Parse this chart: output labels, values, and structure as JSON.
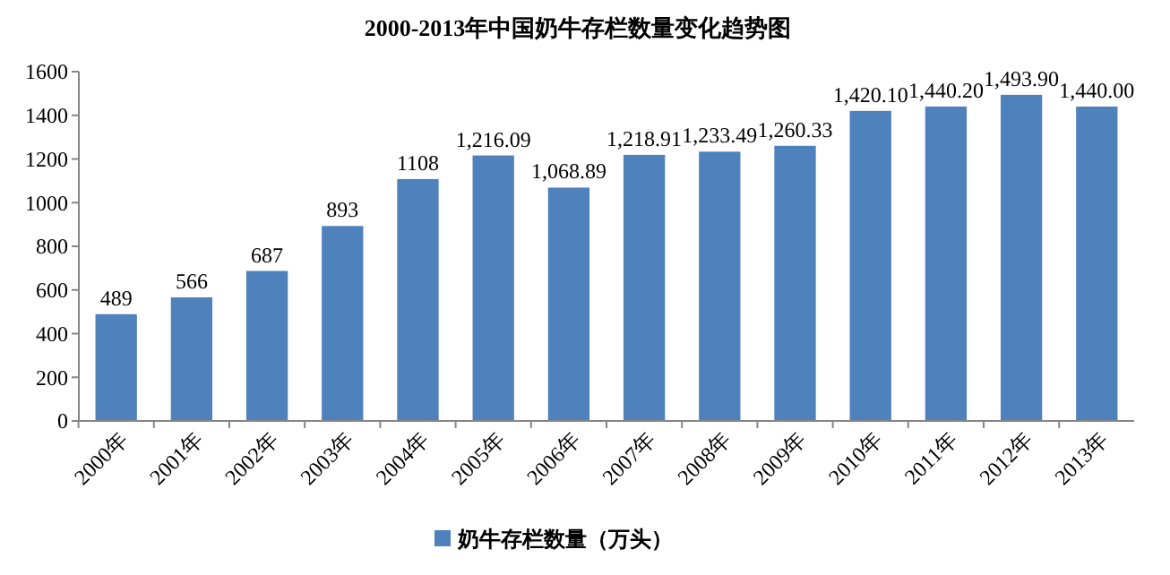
{
  "chart_data": {
    "type": "bar",
    "title": "2000-2013年中国奶牛存栏数量变化趋势图",
    "categories": [
      "2000年",
      "2001年",
      "2002年",
      "2003年",
      "2004年",
      "2005年",
      "2006年",
      "2007年",
      "2008年",
      "2009年",
      "2010年",
      "2011年",
      "2012年",
      "2013年"
    ],
    "series": [
      {
        "name": "奶牛存栏数量（万头）",
        "color": "#4f81bd",
        "values": [
          489,
          566,
          687,
          893,
          1108,
          1216.09,
          1068.89,
          1218.91,
          1233.49,
          1260.33,
          1420.1,
          1440.2,
          1493.9,
          1440.0
        ],
        "value_labels": [
          "489",
          "566",
          "687",
          "893",
          "1108",
          "1,216.09",
          "1,068.89",
          "1,218.91",
          "1,233.49",
          "1,260.33",
          "1,420.10",
          "1,440.20",
          "1,493.90",
          "1,440.00"
        ]
      }
    ],
    "ylim": [
      0,
      1600
    ],
    "yticks": [
      0,
      200,
      400,
      600,
      800,
      1000,
      1200,
      1400,
      1600
    ],
    "legend": "bottom"
  }
}
